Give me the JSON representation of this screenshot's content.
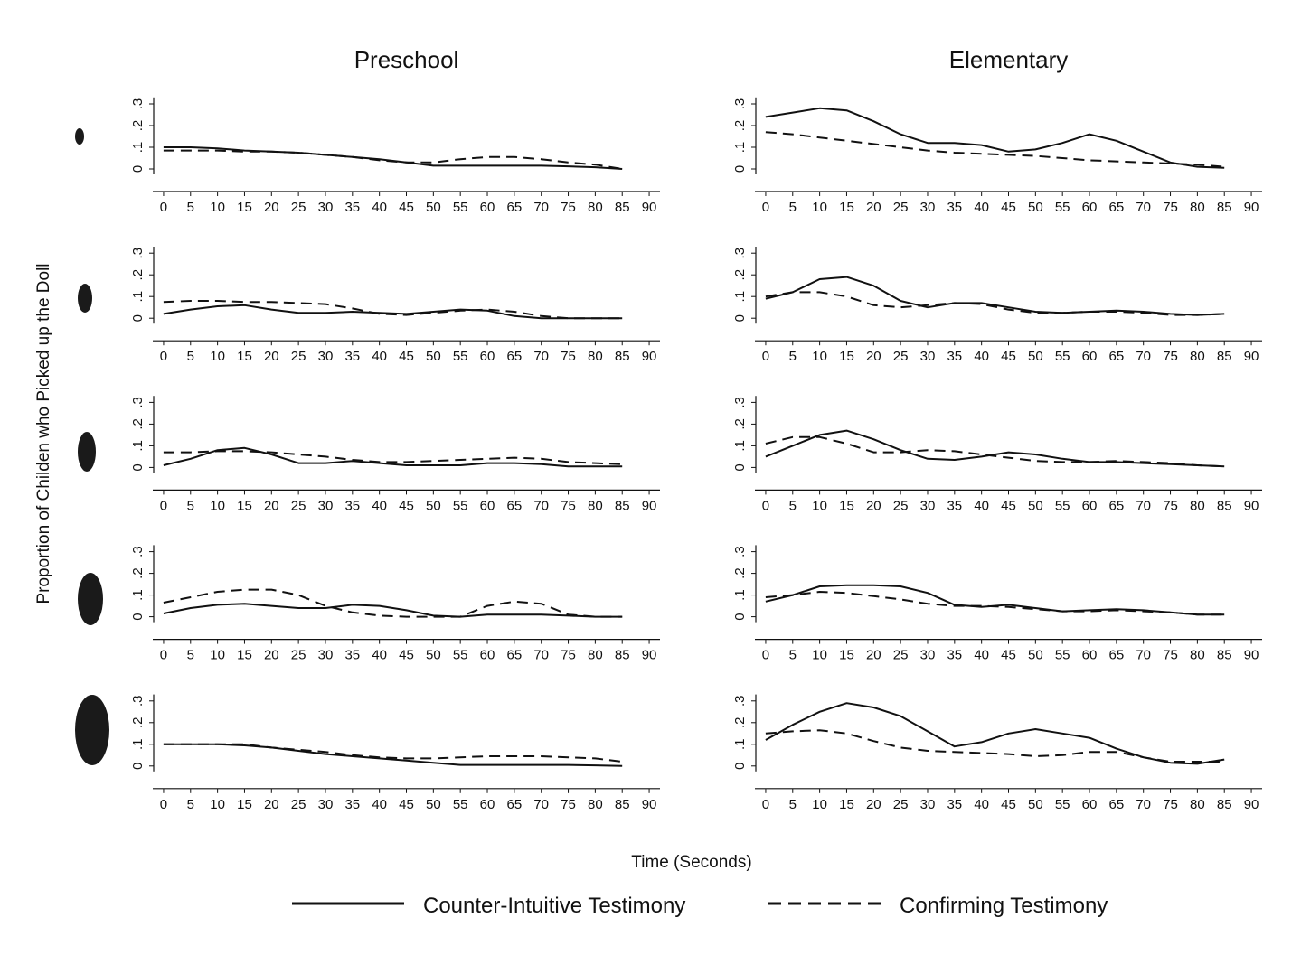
{
  "xlabel": "Time (Seconds)",
  "ylabel": "Proportion of Childen who Picked up the Doll",
  "chart_data": [
    {
      "type": "line",
      "title": "Preschool",
      "x": [
        0,
        5,
        10,
        15,
        20,
        25,
        30,
        35,
        40,
        45,
        50,
        55,
        60,
        65,
        70,
        75,
        80,
        85
      ],
      "xlim": [
        -2,
        92
      ],
      "xticks": [
        0,
        5,
        10,
        15,
        20,
        25,
        30,
        35,
        40,
        45,
        50,
        55,
        60,
        65,
        70,
        75,
        80,
        85,
        90
      ],
      "ylim": [
        -0.05,
        0.33
      ],
      "yticks": [
        0,
        {
          "value": 0.1,
          "label": ".1"
        },
        {
          "value": 0.2,
          "label": ".2"
        },
        {
          "value": 0.3,
          "label": ".3"
        }
      ],
      "series": [
        {
          "name": "Counter-Intuitive Testimony",
          "color": "#111111",
          "dash": false,
          "values": [
            0.1,
            0.1,
            0.095,
            0.085,
            0.08,
            0.075,
            0.065,
            0.055,
            0.045,
            0.03,
            0.015,
            0.015,
            0.015,
            0.015,
            0.015,
            0.012,
            0.008,
            0
          ]
        },
        {
          "name": "Confirming Testimony",
          "color": "#111111",
          "dash": true,
          "values": [
            0.085,
            0.085,
            0.085,
            0.08,
            0.08,
            0.075,
            0.065,
            0.055,
            0.04,
            0.03,
            0.03,
            0.045,
            0.055,
            0.055,
            0.045,
            0.03,
            0.02,
            0
          ]
        }
      ]
    },
    {
      "type": "line",
      "title": "Elementary",
      "x": [
        0,
        5,
        10,
        15,
        20,
        25,
        30,
        35,
        40,
        45,
        50,
        55,
        60,
        65,
        70,
        75,
        80,
        85
      ],
      "xlim": [
        -2,
        92
      ],
      "xticks": [
        0,
        5,
        10,
        15,
        20,
        25,
        30,
        35,
        40,
        45,
        50,
        55,
        60,
        65,
        70,
        75,
        80,
        85,
        90
      ],
      "ylim": [
        -0.05,
        0.33
      ],
      "yticks": [
        0,
        {
          "value": 0.1,
          "label": ".1"
        },
        {
          "value": 0.2,
          "label": ".2"
        },
        {
          "value": 0.3,
          "label": ".3"
        }
      ],
      "series": [
        {
          "color": "#111111",
          "dash": false,
          "values": [
            0.24,
            0.26,
            0.28,
            0.27,
            0.22,
            0.16,
            0.12,
            0.12,
            0.11,
            0.08,
            0.09,
            0.12,
            0.16,
            0.13,
            0.08,
            0.03,
            0.01,
            0.005
          ]
        },
        {
          "color": "#111111",
          "dash": true,
          "values": [
            0.17,
            0.16,
            0.145,
            0.13,
            0.115,
            0.1,
            0.085,
            0.075,
            0.07,
            0.065,
            0.06,
            0.05,
            0.04,
            0.035,
            0.03,
            0.025,
            0.02,
            0.01
          ]
        }
      ]
    },
    {
      "type": "line",
      "x": [
        0,
        5,
        10,
        15,
        20,
        25,
        30,
        35,
        40,
        45,
        50,
        55,
        60,
        65,
        70,
        75,
        80,
        85
      ],
      "xlim": [
        -2,
        92
      ],
      "xticks": [
        0,
        5,
        10,
        15,
        20,
        25,
        30,
        35,
        40,
        45,
        50,
        55,
        60,
        65,
        70,
        75,
        80,
        85,
        90
      ],
      "ylim": [
        -0.05,
        0.33
      ],
      "yticks": [
        0,
        {
          "value": 0.1,
          "label": ".1"
        },
        {
          "value": 0.2,
          "label": ".2"
        },
        {
          "value": 0.3,
          "label": ".3"
        }
      ],
      "series": [
        {
          "color": "#111111",
          "dash": false,
          "values": [
            0.02,
            0.04,
            0.055,
            0.06,
            0.04,
            0.025,
            0.025,
            0.03,
            0.025,
            0.02,
            0.03,
            0.04,
            0.035,
            0.01,
            0,
            0,
            0,
            0
          ]
        },
        {
          "color": "#111111",
          "dash": true,
          "values": [
            0.075,
            0.08,
            0.08,
            0.075,
            0.075,
            0.07,
            0.065,
            0.045,
            0.02,
            0.015,
            0.025,
            0.035,
            0.04,
            0.03,
            0.01,
            0,
            0,
            0
          ]
        }
      ]
    },
    {
      "type": "line",
      "x": [
        0,
        5,
        10,
        15,
        20,
        25,
        30,
        35,
        40,
        45,
        50,
        55,
        60,
        65,
        70,
        75,
        80,
        85
      ],
      "xlim": [
        -2,
        92
      ],
      "xticks": [
        0,
        5,
        10,
        15,
        20,
        25,
        30,
        35,
        40,
        45,
        50,
        55,
        60,
        65,
        70,
        75,
        80,
        85,
        90
      ],
      "ylim": [
        -0.05,
        0.33
      ],
      "yticks": [
        0,
        {
          "value": 0.1,
          "label": ".1"
        },
        {
          "value": 0.2,
          "label": ".2"
        },
        {
          "value": 0.3,
          "label": ".3"
        }
      ],
      "series": [
        {
          "color": "#111111",
          "dash": false,
          "values": [
            0.09,
            0.12,
            0.18,
            0.19,
            0.15,
            0.08,
            0.05,
            0.07,
            0.07,
            0.05,
            0.03,
            0.025,
            0.03,
            0.035,
            0.03,
            0.02,
            0.015,
            0.02
          ]
        },
        {
          "color": "#111111",
          "dash": true,
          "values": [
            0.1,
            0.12,
            0.12,
            0.1,
            0.06,
            0.05,
            0.06,
            0.07,
            0.065,
            0.04,
            0.025,
            0.025,
            0.03,
            0.03,
            0.025,
            0.015,
            0.015,
            0.02
          ]
        }
      ]
    },
    {
      "type": "line",
      "x": [
        0,
        5,
        10,
        15,
        20,
        25,
        30,
        35,
        40,
        45,
        50,
        55,
        60,
        65,
        70,
        75,
        80,
        85
      ],
      "xlim": [
        -2,
        92
      ],
      "xticks": [
        0,
        5,
        10,
        15,
        20,
        25,
        30,
        35,
        40,
        45,
        50,
        55,
        60,
        65,
        70,
        75,
        80,
        85,
        90
      ],
      "ylim": [
        -0.05,
        0.33
      ],
      "yticks": [
        0,
        {
          "value": 0.1,
          "label": ".1"
        },
        {
          "value": 0.2,
          "label": ".2"
        },
        {
          "value": 0.3,
          "label": ".3"
        }
      ],
      "series": [
        {
          "color": "#111111",
          "dash": false,
          "values": [
            0.01,
            0.04,
            0.08,
            0.09,
            0.06,
            0.02,
            0.02,
            0.03,
            0.02,
            0.01,
            0.01,
            0.01,
            0.02,
            0.02,
            0.015,
            0.005,
            0.005,
            0.005
          ]
        },
        {
          "color": "#111111",
          "dash": true,
          "values": [
            0.07,
            0.07,
            0.075,
            0.075,
            0.07,
            0.06,
            0.05,
            0.035,
            0.025,
            0.025,
            0.03,
            0.035,
            0.04,
            0.045,
            0.04,
            0.025,
            0.02,
            0.015
          ]
        }
      ]
    },
    {
      "type": "line",
      "x": [
        0,
        5,
        10,
        15,
        20,
        25,
        30,
        35,
        40,
        45,
        50,
        55,
        60,
        65,
        70,
        75,
        80,
        85
      ],
      "xlim": [
        -2,
        92
      ],
      "xticks": [
        0,
        5,
        10,
        15,
        20,
        25,
        30,
        35,
        40,
        45,
        50,
        55,
        60,
        65,
        70,
        75,
        80,
        85,
        90
      ],
      "ylim": [
        -0.05,
        0.33
      ],
      "yticks": [
        0,
        {
          "value": 0.1,
          "label": ".1"
        },
        {
          "value": 0.2,
          "label": ".2"
        },
        {
          "value": 0.3,
          "label": ".3"
        }
      ],
      "series": [
        {
          "color": "#111111",
          "dash": false,
          "values": [
            0.05,
            0.1,
            0.15,
            0.17,
            0.13,
            0.08,
            0.04,
            0.035,
            0.05,
            0.07,
            0.06,
            0.04,
            0.025,
            0.025,
            0.02,
            0.015,
            0.01,
            0.005
          ]
        },
        {
          "color": "#111111",
          "dash": true,
          "values": [
            0.11,
            0.14,
            0.14,
            0.11,
            0.07,
            0.07,
            0.08,
            0.075,
            0.06,
            0.045,
            0.03,
            0.025,
            0.025,
            0.03,
            0.025,
            0.02,
            0.01,
            0.005
          ]
        }
      ]
    },
    {
      "type": "line",
      "x": [
        0,
        5,
        10,
        15,
        20,
        25,
        30,
        35,
        40,
        45,
        50,
        55,
        60,
        65,
        70,
        75,
        80,
        85
      ],
      "xlim": [
        -2,
        92
      ],
      "xticks": [
        0,
        5,
        10,
        15,
        20,
        25,
        30,
        35,
        40,
        45,
        50,
        55,
        60,
        65,
        70,
        75,
        80,
        85,
        90
      ],
      "ylim": [
        -0.05,
        0.33
      ],
      "yticks": [
        0,
        {
          "value": 0.1,
          "label": ".1"
        },
        {
          "value": 0.2,
          "label": ".2"
        },
        {
          "value": 0.3,
          "label": ".3"
        }
      ],
      "series": [
        {
          "color": "#111111",
          "dash": false,
          "values": [
            0.015,
            0.04,
            0.055,
            0.06,
            0.05,
            0.04,
            0.04,
            0.055,
            0.05,
            0.03,
            0.005,
            0,
            0.01,
            0.01,
            0.01,
            0.005,
            0,
            0
          ]
        },
        {
          "color": "#111111",
          "dash": true,
          "values": [
            0.065,
            0.09,
            0.115,
            0.125,
            0.125,
            0.1,
            0.05,
            0.02,
            0.005,
            0,
            0,
            0,
            0.05,
            0.07,
            0.06,
            0.01,
            0,
            0
          ]
        }
      ]
    },
    {
      "type": "line",
      "x": [
        0,
        5,
        10,
        15,
        20,
        25,
        30,
        35,
        40,
        45,
        50,
        55,
        60,
        65,
        70,
        75,
        80,
        85
      ],
      "xlim": [
        -2,
        92
      ],
      "xticks": [
        0,
        5,
        10,
        15,
        20,
        25,
        30,
        35,
        40,
        45,
        50,
        55,
        60,
        65,
        70,
        75,
        80,
        85,
        90
      ],
      "ylim": [
        -0.05,
        0.33
      ],
      "yticks": [
        0,
        {
          "value": 0.1,
          "label": ".1"
        },
        {
          "value": 0.2,
          "label": ".2"
        },
        {
          "value": 0.3,
          "label": ".3"
        }
      ],
      "series": [
        {
          "color": "#111111",
          "dash": false,
          "values": [
            0.07,
            0.1,
            0.14,
            0.145,
            0.145,
            0.14,
            0.11,
            0.055,
            0.045,
            0.055,
            0.04,
            0.025,
            0.03,
            0.035,
            0.03,
            0.02,
            0.01,
            0.01
          ]
        },
        {
          "color": "#111111",
          "dash": true,
          "values": [
            0.09,
            0.1,
            0.115,
            0.11,
            0.095,
            0.08,
            0.06,
            0.05,
            0.05,
            0.045,
            0.035,
            0.025,
            0.025,
            0.03,
            0.025,
            0.02,
            0.01,
            0.01
          ]
        }
      ]
    },
    {
      "type": "line",
      "x": [
        0,
        5,
        10,
        15,
        20,
        25,
        30,
        35,
        40,
        45,
        50,
        55,
        60,
        65,
        70,
        75,
        80,
        85
      ],
      "xlim": [
        -2,
        92
      ],
      "xticks": [
        0,
        5,
        10,
        15,
        20,
        25,
        30,
        35,
        40,
        45,
        50,
        55,
        60,
        65,
        70,
        75,
        80,
        85,
        90
      ],
      "ylim": [
        -0.05,
        0.33
      ],
      "yticks": [
        0,
        {
          "value": 0.1,
          "label": ".1"
        },
        {
          "value": 0.2,
          "label": ".2"
        },
        {
          "value": 0.3,
          "label": ".3"
        }
      ],
      "series": [
        {
          "color": "#111111",
          "dash": false,
          "values": [
            0.1,
            0.1,
            0.1,
            0.095,
            0.085,
            0.07,
            0.055,
            0.045,
            0.035,
            0.025,
            0.015,
            0.005,
            0.005,
            0.005,
            0.005,
            0.005,
            0.003,
            0
          ]
        },
        {
          "color": "#111111",
          "dash": true,
          "values": [
            0.1,
            0.1,
            0.1,
            0.1,
            0.085,
            0.075,
            0.065,
            0.05,
            0.04,
            0.035,
            0.035,
            0.04,
            0.045,
            0.045,
            0.045,
            0.04,
            0.035,
            0.02
          ]
        }
      ]
    },
    {
      "type": "line",
      "x": [
        0,
        5,
        10,
        15,
        20,
        25,
        30,
        35,
        40,
        45,
        50,
        55,
        60,
        65,
        70,
        75,
        80,
        85
      ],
      "xlim": [
        -2,
        92
      ],
      "xticks": [
        0,
        5,
        10,
        15,
        20,
        25,
        30,
        35,
        40,
        45,
        50,
        55,
        60,
        65,
        70,
        75,
        80,
        85,
        90
      ],
      "ylim": [
        -0.05,
        0.33
      ],
      "yticks": [
        0,
        {
          "value": 0.1,
          "label": ".1"
        },
        {
          "value": 0.2,
          "label": ".2"
        },
        {
          "value": 0.3,
          "label": ".3"
        }
      ],
      "series": [
        {
          "color": "#111111",
          "dash": false,
          "values": [
            0.12,
            0.19,
            0.25,
            0.29,
            0.27,
            0.23,
            0.16,
            0.09,
            0.11,
            0.15,
            0.17,
            0.15,
            0.13,
            0.08,
            0.04,
            0.015,
            0.01,
            0.03
          ]
        },
        {
          "color": "#111111",
          "dash": true,
          "values": [
            0.15,
            0.16,
            0.165,
            0.15,
            0.115,
            0.085,
            0.07,
            0.065,
            0.06,
            0.055,
            0.045,
            0.05,
            0.065,
            0.065,
            0.04,
            0.02,
            0.02,
            0.02
          ]
        }
      ]
    }
  ]
}
